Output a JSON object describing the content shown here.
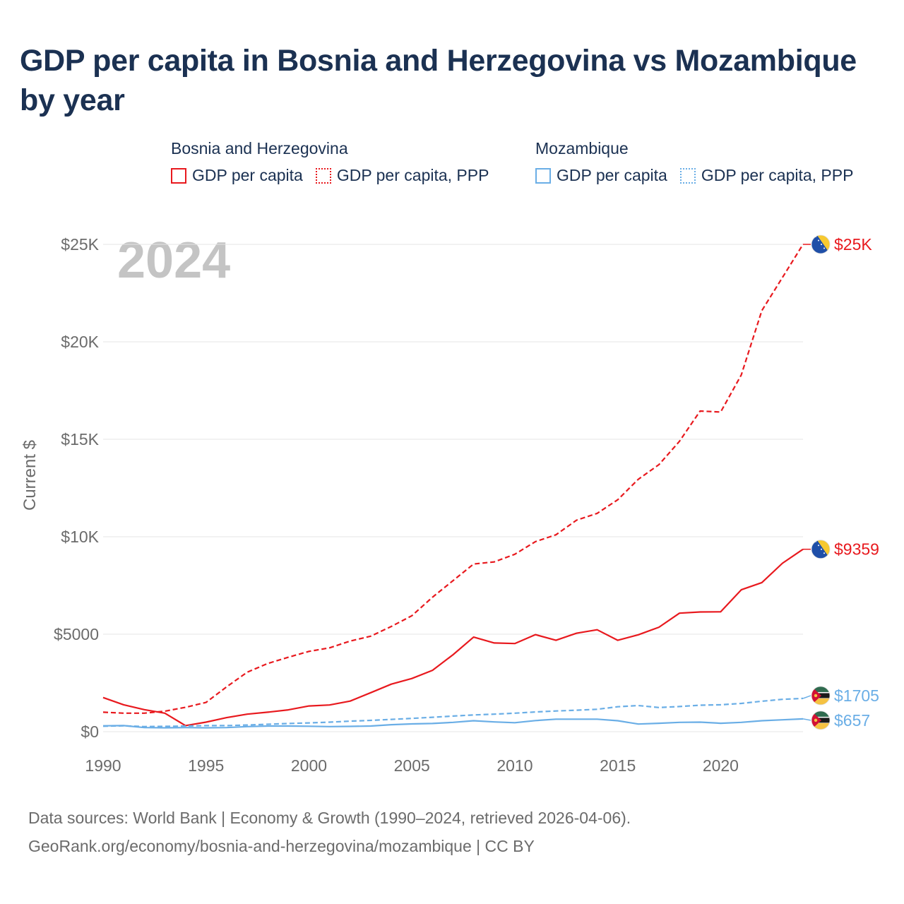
{
  "title": "GDP per capita in Bosnia and Herzegovina vs Mozambique by year",
  "legend": {
    "groups": [
      {
        "name": "Bosnia and Herzegovina",
        "items": [
          "GDP per capita",
          "GDP per capita, PPP"
        ],
        "color": "#e8191e"
      },
      {
        "name": "Mozambique",
        "items": [
          "GDP per capita",
          "GDP per capita, PPP"
        ],
        "color": "#6aaee6"
      }
    ]
  },
  "year_label": "2024",
  "footer": {
    "line1": "Data sources: World Bank | Economy & Growth (1990–2024, retrieved 2026-04-06).",
    "line2": "GeoRank.org/economy/bosnia-and-herzegovina/mozambique | CC BY"
  },
  "chart_data": {
    "type": "line",
    "title": "GDP per capita in Bosnia and Herzegovina vs Mozambique by year",
    "xlabel": "",
    "ylabel": "Current $",
    "x": [
      1990,
      1991,
      1992,
      1993,
      1994,
      1995,
      1996,
      1997,
      1998,
      1999,
      2000,
      2001,
      2002,
      2003,
      2004,
      2005,
      2006,
      2007,
      2008,
      2009,
      2010,
      2011,
      2012,
      2013,
      2014,
      2015,
      2016,
      2017,
      2018,
      2019,
      2020,
      2021,
      2022,
      2023,
      2024
    ],
    "xlim": [
      1990,
      2024
    ],
    "ylim": [
      0,
      25000
    ],
    "xticks": [
      1990,
      1995,
      2000,
      2005,
      2010,
      2015,
      2020
    ],
    "xtick_labels": [
      "1990",
      "1995",
      "2000",
      "2005",
      "2010",
      "2015",
      "2020"
    ],
    "yticks": [
      0,
      5000,
      10000,
      15000,
      20000,
      25000
    ],
    "ytick_labels": [
      "$0",
      "$5000",
      "$10K",
      "$15K",
      "$20K",
      "$25K"
    ],
    "grid": true,
    "series": [
      {
        "name": "Bosnia and Herzegovina — GDP per capita",
        "country": "Bosnia and Herzegovina",
        "color": "#e8191e",
        "dash": false,
        "end_label": "$9359",
        "values": [
          1750,
          1380,
          1130,
          950,
          310,
          490,
          720,
          900,
          1000,
          1120,
          1320,
          1370,
          1570,
          2000,
          2440,
          2730,
          3150,
          3950,
          4850,
          4550,
          4520,
          4980,
          4690,
          5050,
          5230,
          4690,
          4970,
          5360,
          6080,
          6140,
          6150,
          7280,
          7650,
          8640,
          9359
        ]
      },
      {
        "name": "Bosnia and Herzegovina — GDP per capita, PPP",
        "country": "Bosnia and Herzegovina",
        "color": "#e8191e",
        "dash": true,
        "end_label": "$25K",
        "values": [
          1000,
          950,
          950,
          1050,
          1250,
          1500,
          2300,
          3050,
          3500,
          3820,
          4120,
          4300,
          4650,
          4900,
          5400,
          5950,
          6900,
          7750,
          8600,
          8710,
          9100,
          9750,
          10100,
          10850,
          11200,
          11900,
          12950,
          13700,
          14900,
          16450,
          16400,
          18300,
          21600,
          23300,
          25000
        ]
      },
      {
        "name": "Mozambique — GDP per capita",
        "country": "Mozambique",
        "color": "#6aaee6",
        "dash": false,
        "end_label": "$657",
        "values": [
          300,
          310,
          210,
          200,
          210,
          200,
          210,
          260,
          290,
          290,
          280,
          260,
          270,
          290,
          360,
          400,
          420,
          480,
          560,
          500,
          460,
          570,
          640,
          640,
          640,
          560,
          390,
          430,
          480,
          490,
          430,
          480,
          560,
          610,
          657
        ]
      },
      {
        "name": "Mozambique — GDP per capita, PPP",
        "country": "Mozambique",
        "color": "#6aaee6",
        "dash": true,
        "end_label": "$1705",
        "values": [
          280,
          300,
          260,
          270,
          290,
          310,
          310,
          340,
          380,
          420,
          450,
          490,
          540,
          580,
          630,
          680,
          740,
          800,
          860,
          900,
          950,
          1010,
          1060,
          1100,
          1150,
          1280,
          1340,
          1240,
          1290,
          1360,
          1380,
          1450,
          1560,
          1660,
          1705
        ]
      }
    ]
  }
}
